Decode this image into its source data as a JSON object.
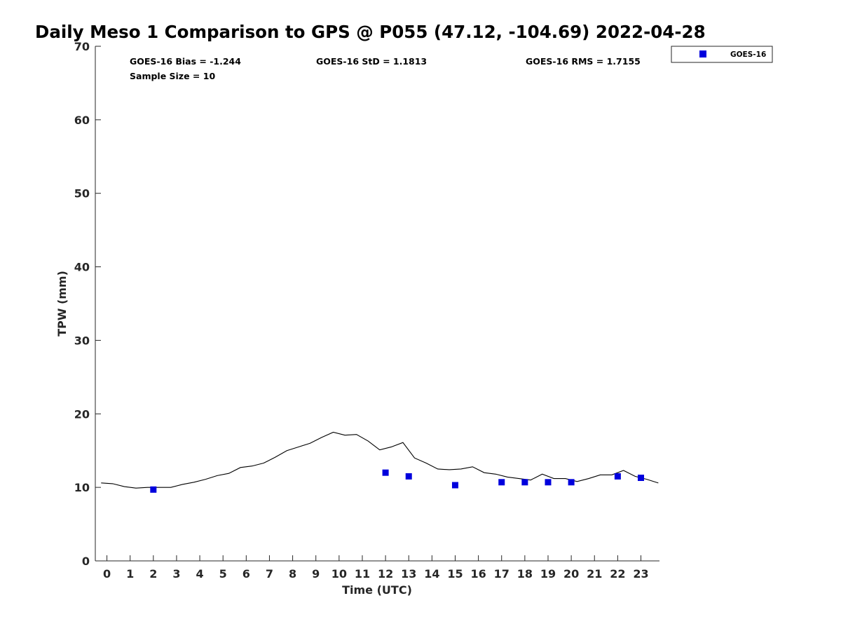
{
  "chart_data": {
    "type": "scatter",
    "title": "Daily Meso 1 Comparison to GPS @ P055 (47.12, -104.69) 2022-04-28",
    "xlabel": "Time (UTC)",
    "ylabel": "TPW (mm)",
    "xlim": [
      -0.5,
      23.8
    ],
    "ylim": [
      0,
      70
    ],
    "xticks": [
      0,
      1,
      2,
      3,
      4,
      5,
      6,
      7,
      8,
      9,
      10,
      11,
      12,
      13,
      14,
      15,
      16,
      17,
      18,
      19,
      20,
      21,
      22,
      23
    ],
    "yticks": [
      0,
      10,
      20,
      30,
      40,
      50,
      60,
      70
    ],
    "grid": false,
    "legend_position": "top-right, outside plot",
    "stats": {
      "bias": "GOES-16 Bias = -1.244",
      "std": "GOES-16 StD = 1.1813",
      "rms": "GOES-16 RMS = 1.7155",
      "sample": "Sample Size = 10"
    },
    "series": [
      {
        "key": "gps",
        "kind": "line",
        "color": "#000000",
        "x": [
          -0.25,
          0.25,
          0.75,
          1.25,
          1.75,
          2.25,
          2.75,
          3.25,
          3.75,
          4.25,
          4.75,
          5.25,
          5.75,
          6.25,
          6.75,
          7.25,
          7.75,
          8.25,
          8.75,
          9.25,
          9.75,
          10.25,
          10.75,
          11.25,
          11.75,
          12.25,
          12.75,
          13.25,
          13.75,
          14.25,
          14.75,
          15.25,
          15.75,
          16.25,
          16.75,
          17.25,
          17.75,
          18.25,
          18.75,
          19.25,
          19.75,
          20.25,
          20.75,
          21.25,
          21.75,
          22.25,
          22.75,
          23.25,
          23.75
        ],
        "y": [
          10.6,
          10.5,
          10.1,
          9.9,
          10.0,
          10.0,
          10.0,
          10.4,
          10.7,
          11.1,
          11.6,
          11.9,
          12.7,
          12.9,
          13.3,
          14.1,
          15.0,
          15.5,
          16.0,
          16.8,
          17.5,
          17.1,
          17.2,
          16.3,
          15.1,
          15.5,
          16.1,
          14.0,
          13.3,
          12.5,
          12.4,
          12.5,
          12.8,
          12.0,
          11.8,
          11.4,
          11.2,
          11.0,
          11.8,
          11.2,
          11.2,
          10.8,
          11.2,
          11.7,
          11.7,
          12.3,
          11.5,
          11.1,
          10.6
        ]
      },
      {
        "key": "goes",
        "name": "GOES-16",
        "kind": "scatter",
        "marker": "square",
        "color": "#0000dd",
        "x": [
          2,
          12,
          13,
          15,
          17,
          18,
          19,
          20,
          22,
          23
        ],
        "y": [
          9.7,
          12.0,
          11.5,
          10.3,
          10.7,
          10.7,
          10.7,
          10.7,
          11.5,
          11.3
        ]
      }
    ]
  }
}
